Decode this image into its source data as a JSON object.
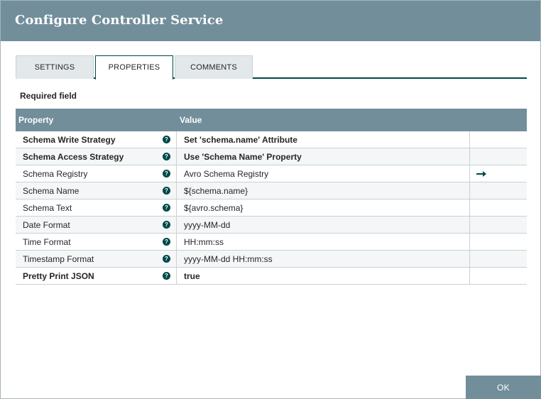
{
  "dialog": {
    "title": "Configure Controller Service"
  },
  "tabs": [
    {
      "label": "SETTINGS"
    },
    {
      "label": "PROPERTIES"
    },
    {
      "label": "COMMENTS"
    }
  ],
  "required_label": "Required field",
  "table": {
    "headers": {
      "property": "Property",
      "value": "Value"
    },
    "rows": [
      {
        "property": "Schema Write Strategy",
        "value": "Set 'schema.name' Attribute",
        "required": true
      },
      {
        "property": "Schema Access Strategy",
        "value": "Use 'Schema Name' Property",
        "required": true
      },
      {
        "property": "Schema Registry",
        "value": "Avro Schema Registry",
        "required": false,
        "action": "goto-icon"
      },
      {
        "property": "Schema Name",
        "value": "${schema.name}",
        "required": false
      },
      {
        "property": "Schema Text",
        "value": "${avro.schema}",
        "required": false
      },
      {
        "property": "Date Format",
        "value": "yyyy-MM-dd",
        "required": false
      },
      {
        "property": "Time Format",
        "value": "HH:mm:ss",
        "required": false
      },
      {
        "property": "Timestamp Format",
        "value": "yyyy-MM-dd HH:mm:ss",
        "required": false
      },
      {
        "property": "Pretty Print JSON",
        "value": "true",
        "required": true
      }
    ]
  },
  "footer": {
    "ok_label": "OK"
  },
  "colors": {
    "header": "#728e9b",
    "accent": "#004849"
  }
}
